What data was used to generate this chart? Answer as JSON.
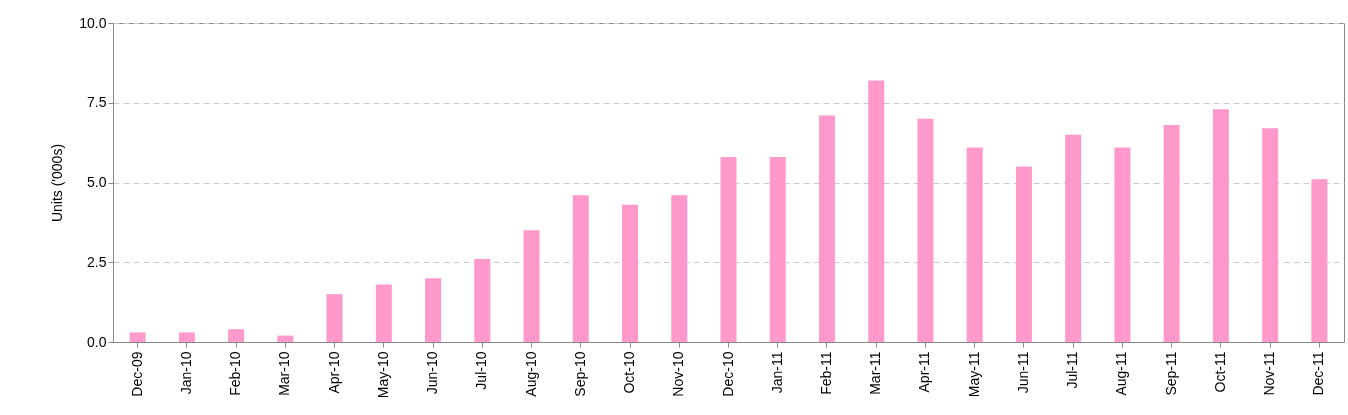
{
  "chart_data": {
    "type": "bar",
    "ylabel": "Units ('000s)",
    "categories": [
      "Dec-09",
      "Jan-10",
      "Feb-10",
      "Mar-10",
      "Apr-10",
      "May-10",
      "Jun-10",
      "Jul-10",
      "Aug-10",
      "Sep-10",
      "Oct-10",
      "Nov-10",
      "Dec-10",
      "Jan-11",
      "Feb-11",
      "Mar-11",
      "Apr-11",
      "May-11",
      "Jun-11",
      "Jul-11",
      "Aug-11",
      "Sep-11",
      "Oct-11",
      "Nov-11",
      "Dec-11"
    ],
    "values": [
      0.3,
      0.3,
      0.4,
      0.2,
      1.5,
      1.8,
      2.0,
      2.6,
      3.5,
      4.6,
      4.3,
      4.6,
      5.8,
      5.8,
      7.1,
      8.2,
      7.0,
      6.1,
      5.5,
      6.5,
      6.1,
      6.8,
      7.3,
      6.7,
      5.1
    ],
    "color": "#ff99cc",
    "ylim": [
      0,
      10
    ],
    "yticks": [
      {
        "value": 0,
        "label": "0.0"
      },
      {
        "value": 2.5,
        "label": "2.5"
      },
      {
        "value": 5,
        "label": "5.0"
      },
      {
        "value": 7.5,
        "label": "7.5"
      },
      {
        "value": 10,
        "label": "10.0"
      }
    ],
    "grid": "y"
  }
}
